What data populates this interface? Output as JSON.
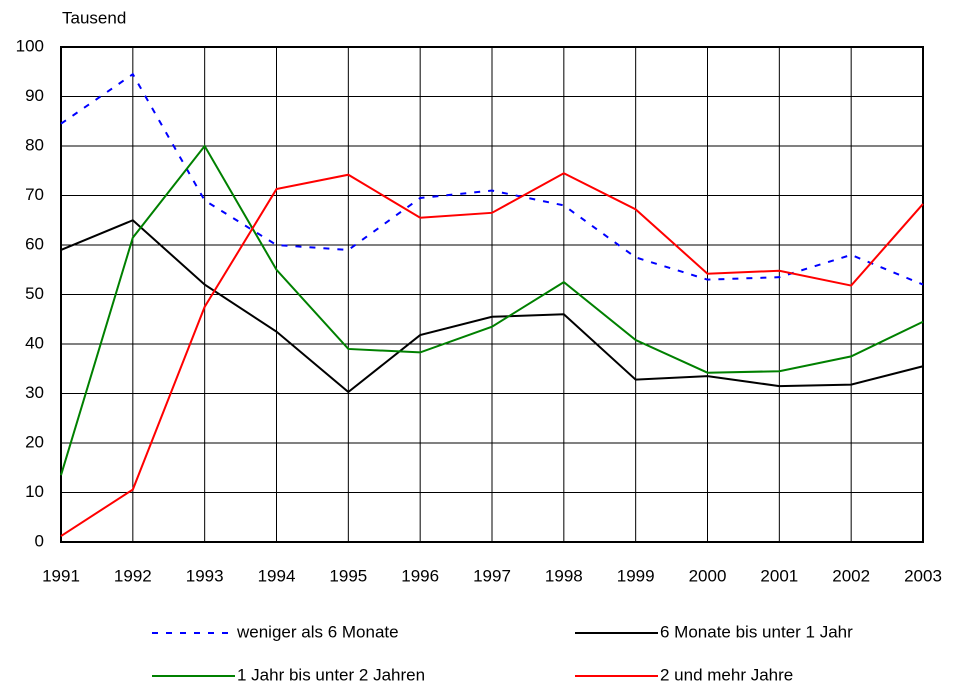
{
  "chart_data": {
    "type": "line",
    "y_label": "Tausend",
    "x": [
      1991,
      1992,
      1993,
      1994,
      1995,
      1996,
      1997,
      1998,
      1999,
      2000,
      2001,
      2002,
      2003
    ],
    "xlim": [
      1991,
      2003
    ],
    "xticks": [
      1991,
      1992,
      1993,
      1994,
      1995,
      1996,
      1997,
      1998,
      1999,
      2000,
      2001,
      2002,
      2003
    ],
    "ylim": [
      0,
      100
    ],
    "yticks": [
      0,
      10,
      20,
      30,
      40,
      50,
      60,
      70,
      80,
      90,
      100
    ],
    "grid": true,
    "series": [
      {
        "name": "weniger als 6 Monate",
        "color": "#0000ff",
        "style": "dotted",
        "values": [
          84.5,
          94.5,
          69,
          60,
          59,
          69.5,
          71,
          68,
          57.5,
          53,
          53.5,
          58,
          52
        ]
      },
      {
        "name": "6 Monate bis unter 1 Jahr",
        "color": "#000000",
        "style": "solid",
        "values": [
          59,
          65,
          52,
          42.5,
          30.3,
          41.8,
          45.5,
          46,
          32.8,
          33.5,
          31.5,
          31.8,
          35.5
        ]
      },
      {
        "name": "1 Jahr bis unter 2 Jahren",
        "color": "#008000",
        "style": "solid",
        "values": [
          13.5,
          61.5,
          80,
          55,
          39,
          38.3,
          43.5,
          52.5,
          40.8,
          34.2,
          34.5,
          37.5,
          44.5
        ]
      },
      {
        "name": "2 und mehr Jahre",
        "color": "#ff0000",
        "style": "solid",
        "values": [
          1.2,
          10.6,
          47.5,
          71.3,
          74.2,
          65.5,
          66.5,
          74.5,
          67.2,
          54.2,
          54.8,
          51.8,
          68.3
        ]
      }
    ]
  }
}
